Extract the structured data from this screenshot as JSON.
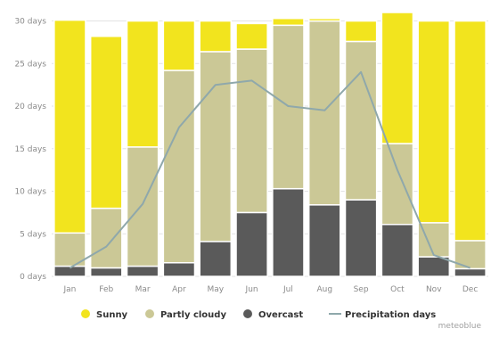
{
  "chart_data": {
    "type": "bar",
    "stacked": true,
    "categories": [
      "Jan",
      "Feb",
      "Mar",
      "Apr",
      "May",
      "Jun",
      "Jul",
      "Aug",
      "Sep",
      "Oct",
      "Nov",
      "Dec"
    ],
    "y_ticks": [
      "0 days",
      "5 days",
      "10 days",
      "15 days",
      "20 days",
      "25 days",
      "30 days"
    ],
    "ylim": [
      0,
      31
    ],
    "grid": true,
    "legend_position": "bottom",
    "series": [
      {
        "name": "Overcast",
        "kind": "bar",
        "color": "#5a5a5a",
        "values": [
          1.2,
          1.0,
          1.2,
          1.6,
          4.1,
          7.5,
          10.3,
          8.4,
          9.0,
          6.1,
          2.3,
          0.9
        ]
      },
      {
        "name": "Partly cloudy",
        "kind": "bar",
        "color": "#cbc896",
        "values": [
          3.9,
          7.0,
          14.0,
          22.6,
          22.3,
          19.2,
          19.2,
          21.6,
          18.6,
          9.5,
          4.0,
          3.3
        ]
      },
      {
        "name": "Sunny",
        "kind": "bar",
        "color": "#f2e41e",
        "values": [
          25.0,
          20.2,
          14.8,
          5.8,
          3.6,
          3.0,
          0.8,
          0.3,
          2.4,
          15.4,
          23.7,
          25.8
        ]
      },
      {
        "name": "Precipitation days",
        "kind": "line",
        "color": "#8fa8ab",
        "values": [
          1.0,
          3.5,
          8.5,
          17.5,
          22.5,
          23.0,
          20.0,
          19.5,
          24.0,
          12.5,
          2.5,
          1.0
        ]
      }
    ],
    "legend": [
      "Sunny",
      "Partly cloudy",
      "Overcast",
      "Precipitation days"
    ],
    "credit": "meteoblue"
  }
}
